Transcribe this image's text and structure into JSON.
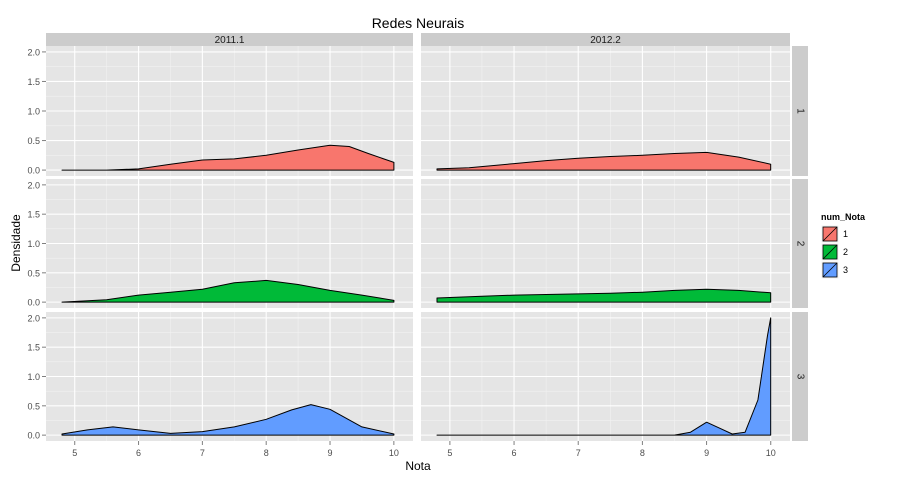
{
  "chart_data": {
    "type": "area",
    "title": "Redes Neurais",
    "xlabel": "Nota",
    "ylabel": "Densidade",
    "xlim": [
      4.55,
      10.3
    ],
    "ylim": [
      -0.1,
      2.1
    ],
    "x_ticks": [
      5,
      6,
      7,
      8,
      9,
      10
    ],
    "y_ticks": [
      0.0,
      0.5,
      1.0,
      1.5,
      2.0
    ],
    "y_tick_labels": [
      "0.0",
      "0.5",
      "1.0",
      "1.5",
      "2.0"
    ],
    "grid": true,
    "columns": [
      "2011.1",
      "2012.2"
    ],
    "rows": [
      "1",
      "2",
      "3"
    ],
    "legend": {
      "title": "num_Nota",
      "position": "right",
      "entries": [
        {
          "label": "1",
          "color": "#F8766D"
        },
        {
          "label": "2",
          "color": "#00BA38"
        },
        {
          "label": "3",
          "color": "#619CFF"
        }
      ]
    },
    "panels": [
      {
        "col": "2011.1",
        "row": "1",
        "series": "1",
        "x": [
          4.8,
          5.5,
          6.0,
          6.5,
          7.0,
          7.5,
          8.0,
          8.5,
          9.0,
          9.3,
          9.6,
          10.0
        ],
        "y": [
          0.0,
          0.0,
          0.02,
          0.1,
          0.17,
          0.19,
          0.25,
          0.34,
          0.42,
          0.4,
          0.28,
          0.13
        ]
      },
      {
        "col": "2012.2",
        "row": "1",
        "series": "1",
        "x": [
          4.8,
          5.3,
          6.0,
          6.5,
          7.0,
          7.5,
          8.0,
          8.5,
          9.0,
          9.5,
          10.0
        ],
        "y": [
          0.02,
          0.04,
          0.11,
          0.16,
          0.2,
          0.23,
          0.25,
          0.28,
          0.3,
          0.22,
          0.1
        ]
      },
      {
        "col": "2011.1",
        "row": "2",
        "series": "2",
        "x": [
          4.8,
          5.5,
          6.0,
          6.5,
          7.0,
          7.5,
          8.0,
          8.5,
          9.0,
          9.5,
          10.0
        ],
        "y": [
          0.0,
          0.04,
          0.12,
          0.17,
          0.22,
          0.33,
          0.37,
          0.3,
          0.2,
          0.12,
          0.03
        ]
      },
      {
        "col": "2012.2",
        "row": "2",
        "series": "2",
        "x": [
          4.8,
          5.5,
          6.0,
          6.5,
          7.0,
          7.5,
          8.0,
          8.5,
          9.0,
          9.5,
          10.0
        ],
        "y": [
          0.07,
          0.1,
          0.12,
          0.13,
          0.14,
          0.15,
          0.17,
          0.2,
          0.22,
          0.2,
          0.16
        ]
      },
      {
        "col": "2011.1",
        "row": "3",
        "series": "3",
        "x": [
          4.8,
          5.2,
          5.6,
          6.0,
          6.5,
          7.0,
          7.5,
          8.0,
          8.4,
          8.7,
          9.0,
          9.5,
          10.0
        ],
        "y": [
          0.02,
          0.09,
          0.14,
          0.09,
          0.03,
          0.06,
          0.14,
          0.27,
          0.43,
          0.52,
          0.44,
          0.14,
          0.02
        ]
      },
      {
        "col": "2012.2",
        "row": "3",
        "series": "3",
        "x": [
          4.8,
          8.5,
          8.75,
          9.0,
          9.2,
          9.4,
          9.6,
          9.8,
          9.95,
          10.0
        ],
        "y": [
          0.0,
          0.0,
          0.05,
          0.22,
          0.12,
          0.02,
          0.05,
          0.6,
          1.7,
          2.0
        ]
      }
    ]
  }
}
